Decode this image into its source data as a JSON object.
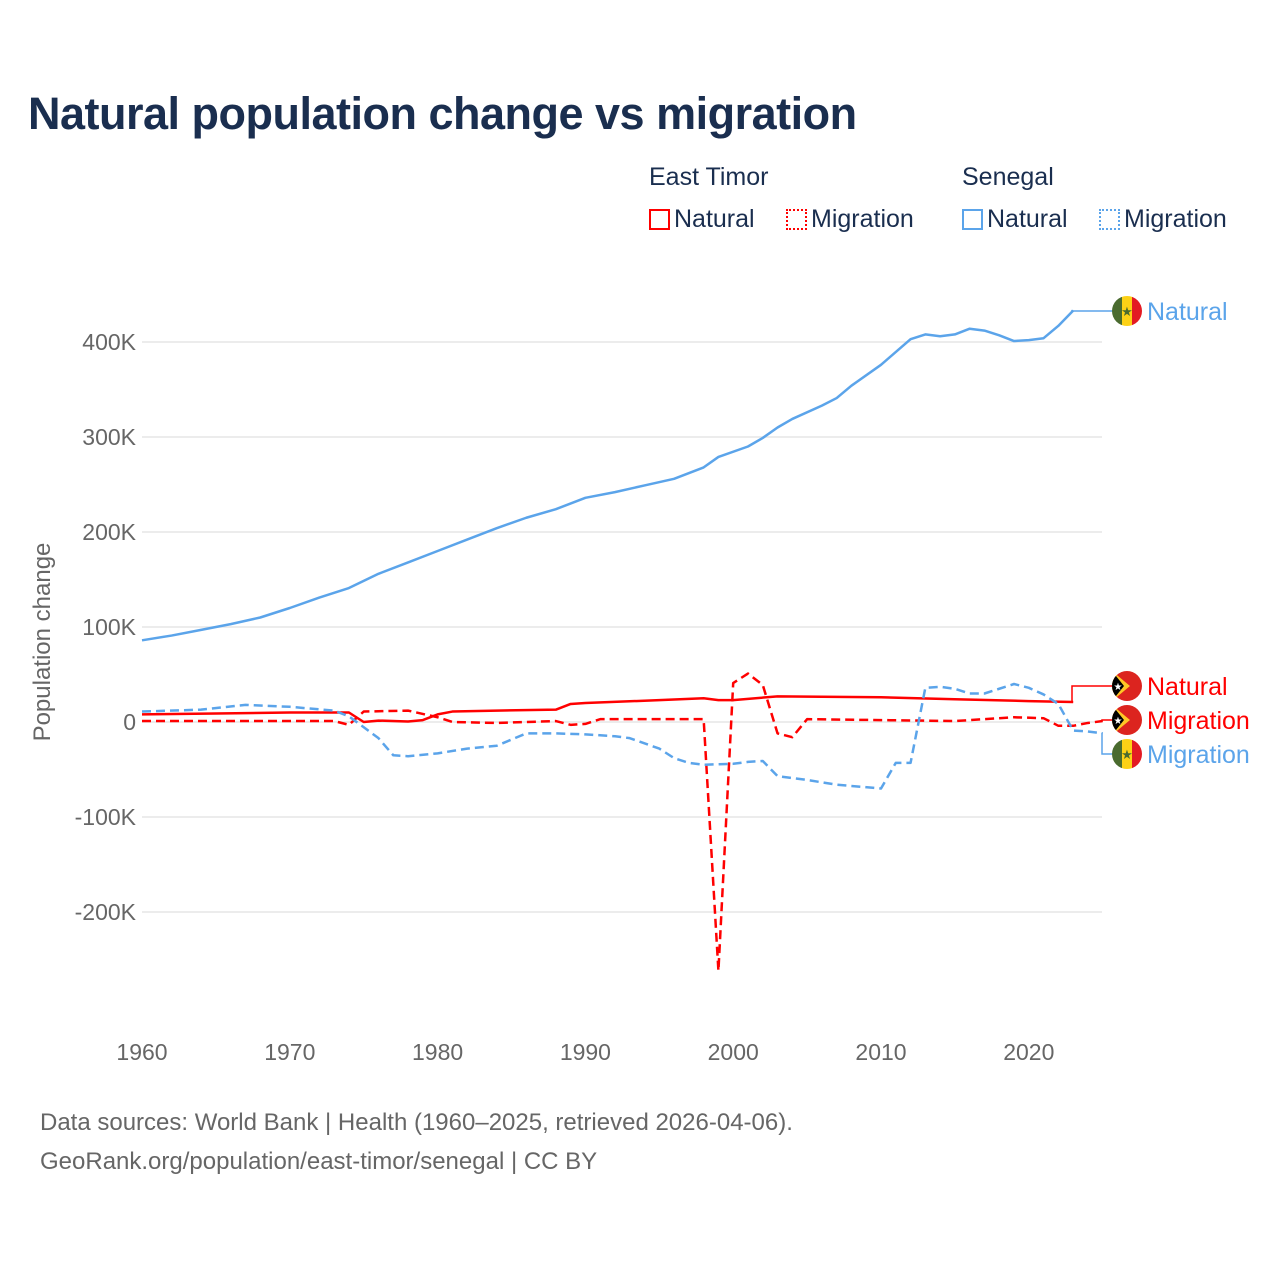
{
  "title": "Natural population change vs migration",
  "legend": {
    "groups": [
      {
        "name": "East Timor",
        "items": [
          "Natural",
          "Migration"
        ],
        "color": "#ff0000"
      },
      {
        "name": "Senegal",
        "items": [
          "Natural",
          "Migration"
        ],
        "color": "#5ba4ea"
      }
    ]
  },
  "footer": {
    "line1": "Data sources: World Bank | Health (1960–2025, retrieved 2026-04-06).",
    "line2": "GeoRank.org/population/east-timor/senegal | CC BY"
  },
  "chart_data": {
    "type": "line",
    "title": "Natural population change vs migration",
    "xlabel": "",
    "ylabel": "Population change",
    "xlim": [
      1960,
      2025
    ],
    "ylim": [
      -280000,
      440000
    ],
    "x_ticks": [
      1960,
      1970,
      1980,
      1990,
      2000,
      2010,
      2020
    ],
    "x_tick_labels": [
      "1960",
      "1970",
      "1980",
      "1990",
      "2000",
      "2010",
      "2020"
    ],
    "y_ticks": [
      -200000,
      -100000,
      0,
      100000,
      200000,
      300000,
      400000
    ],
    "y_tick_labels": [
      "-200K",
      "-100K",
      "0",
      "100K",
      "200K",
      "300K",
      "400K"
    ],
    "grid": true,
    "legend_placement": "top-right",
    "series": [
      {
        "name": "Senegal Natural",
        "label": "Natural",
        "country": "Senegal",
        "color": "#5ba4ea",
        "dash": false,
        "x": [
          1960,
          1962,
          1964,
          1966,
          1968,
          1970,
          1972,
          1974,
          1976,
          1978,
          1980,
          1982,
          1984,
          1986,
          1988,
          1990,
          1992,
          1994,
          1996,
          1998,
          1999,
          2001,
          2002,
          2003,
          2004,
          2006,
          2007,
          2008,
          2010,
          2012,
          2013,
          2014,
          2015,
          2016,
          2017,
          2018,
          2019,
          2020,
          2021,
          2022,
          2023
        ],
        "y": [
          86000,
          91000,
          97000,
          103000,
          110000,
          120000,
          131000,
          141000,
          156000,
          168000,
          180000,
          192000,
          204000,
          215000,
          224000,
          236000,
          242000,
          249000,
          256000,
          268000,
          279000,
          290000,
          299000,
          310000,
          319000,
          333000,
          341000,
          354000,
          376000,
          403000,
          408000,
          406000,
          408000,
          414000,
          412000,
          407000,
          401000,
          402000,
          404000,
          417000,
          433000
        ]
      },
      {
        "name": "East Timor Natural",
        "label": "Natural",
        "country": "East Timor",
        "color": "#ff0000",
        "dash": false,
        "x": [
          1960,
          1965,
          1970,
          1974,
          1975,
          1976,
          1978,
          1979,
          1980,
          1981,
          1984,
          1988,
          1989,
          1990,
          1995,
          1998,
          1999,
          2000,
          2003,
          2010,
          2015,
          2020,
          2023
        ],
        "y": [
          8000,
          9000,
          10000,
          10000,
          0,
          1500,
          500,
          2000,
          8000,
          11000,
          12000,
          13000,
          19000,
          20000,
          23000,
          25000,
          23000,
          23000,
          27000,
          26000,
          24000,
          22000,
          21000
        ]
      },
      {
        "name": "East Timor Migration",
        "label": "Migration",
        "country": "East Timor",
        "color": "#ff0000",
        "dash": true,
        "x": [
          1960,
          1973,
          1974,
          1975,
          1978,
          1980,
          1981,
          1984,
          1988,
          1989,
          1990,
          1991,
          1998,
          1999,
          2000,
          2001,
          2002,
          2003,
          2004,
          2005,
          2010,
          2015,
          2019,
          2021,
          2022,
          2023,
          2024,
          2025
        ],
        "y": [
          1000,
          1000,
          -3000,
          11000,
          12000,
          5000,
          0,
          -1000,
          1000,
          -3000,
          -2000,
          3000,
          3000,
          -262000,
          41000,
          51000,
          39000,
          -12000,
          -16000,
          3000,
          2000,
          1000,
          5000,
          4000,
          -4000,
          -4000,
          -1000,
          1000
        ]
      },
      {
        "name": "Senegal Migration",
        "label": "Migration",
        "country": "Senegal",
        "color": "#5ba4ea",
        "dash": true,
        "x": [
          1960,
          1964,
          1967,
          1970,
          1973,
          1974,
          1976,
          1977,
          1978,
          1980,
          1982,
          1984,
          1986,
          1988,
          1990,
          1992,
          1993,
          1995,
          1996,
          1997,
          1998,
          2000,
          2001,
          2002,
          2003,
          2005,
          2007,
          2010,
          2011,
          2012,
          2013,
          2014,
          2015,
          2016,
          2017,
          2018,
          2019,
          2020,
          2021,
          2022,
          2023,
          2024,
          2025
        ],
        "y": [
          11000,
          13000,
          18000,
          16000,
          12000,
          6000,
          -17000,
          -35000,
          -36000,
          -33000,
          -28000,
          -25000,
          -12000,
          -12000,
          -13000,
          -15000,
          -17000,
          -28000,
          -38000,
          -43000,
          -45000,
          -44000,
          -42000,
          -41000,
          -57000,
          -61000,
          -66000,
          -70000,
          -43000,
          -43000,
          36000,
          37000,
          35000,
          30000,
          30000,
          35000,
          40000,
          36000,
          29000,
          19000,
          -9000,
          -10000,
          -12000
        ]
      }
    ]
  }
}
